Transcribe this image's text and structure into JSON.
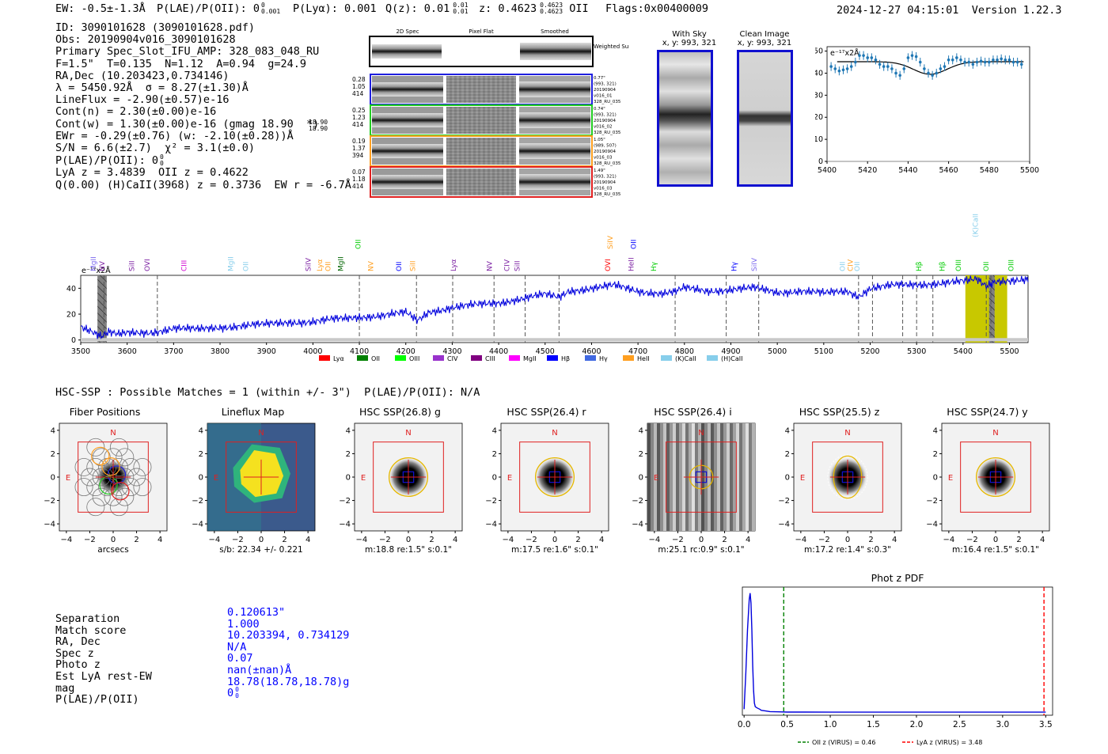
{
  "header": {
    "ew": "EW: -0.5±-1.3Å",
    "plae": "P(LAE)/P(OII): 0",
    "plae_sup": "0",
    "plae_sub": "0.001",
    "plya": "P(Lyα): 0.001",
    "qz": "Q(z): 0.01",
    "qz_sup": "0.01",
    "qz_sub": "0.01",
    "z": "z: 0.4623",
    "z_sup": "0.4623",
    "z_sub": "0.4623",
    "z_line": "OII",
    "flags": "Flags:0x00400009",
    "timestamp": "2024-12-27 04:15:01",
    "version": "Version 1.22.3"
  },
  "info": {
    "lines": [
      "ID: 3090101628 (3090101628.pdf)",
      "Obs: 20190904v016_3090101628",
      "Primary Spec_Slot_IFU_AMP: 328_083_048_RU",
      "F=1.5\"  T=0.135  N=1.12  A=0.94  g=24.9",
      "RA,Dec (10.203423,0.734146)",
      "λ = 5450.92Å  σ = 8.27(±1.30)Å",
      "LineFlux = -2.90(±0.57)e-16",
      "Cont(n) = 2.30(±0.00)e-16",
      "Cont(w) = 1.30(±0.00)e-16 (gmag 18.90  *)",
      "EWr = -0.29(±0.76) (w: -2.10(±0.28))Å",
      "S/N = 6.6(±2.7)  χ² = 3.1(±0.0)",
      "P(LAE)/P(OII): 0",
      "LyA z = 3.4839  OII z = 0.4622",
      "Q(0.00) (H)CaII(3968) z = 0.3736  EW r = -6.7Å"
    ],
    "gmag_sup": "18.90",
    "gmag_sub": "18.90",
    "plae_sup": "0",
    "plae_sub": "0"
  },
  "cutouts": {
    "headers": [
      "2D Spec",
      "Pixel Flat",
      "Smoothed"
    ],
    "weighted_label": "Weighted Sum",
    "rows": [
      {
        "left": [
          "0.28",
          "1.05",
          "414"
        ],
        "right": [
          "0.77\"",
          "(993, 321)",
          "20190904",
          "v016_01",
          "328_RU_035"
        ],
        "color": "#1f1fdf"
      },
      {
        "left": [
          "0.25",
          "1.23",
          "414"
        ],
        "right": [
          "0.74\"",
          "(993, 321)",
          "20190904",
          "v016_02",
          "328_RU_035"
        ],
        "color": "#22cc22"
      },
      {
        "left": [
          "0.19",
          "1.37",
          "394"
        ],
        "right": [
          "1.05\"",
          "(989, 507)",
          "20190904",
          "v016_03",
          "328_RU_035"
        ],
        "color": "#ff9f20"
      },
      {
        "left": [
          "0.07",
          "1.18",
          "414"
        ],
        "right": [
          "1.49\"",
          "(993, 321)",
          "20190904",
          "v016_03",
          "328_RU_035"
        ],
        "color": "#e02020"
      }
    ]
  },
  "sky": {
    "with_sky_title": "With Sky",
    "with_sky_coords": "x, y: 993, 321",
    "clean_title": "Clean Image",
    "clean_coords": "x, y: 993, 321"
  },
  "zoom_plot": {
    "unit_label": "e⁻¹⁷x2Å",
    "colors": {
      "points": "#1f77b4",
      "fit": "#000000"
    }
  },
  "spectrum": {
    "unit_label": "e⁻¹⁷x2Å",
    "line_labels": [
      {
        "w": 3527,
        "t": "MgII",
        "c": "#7b68ee"
      },
      {
        "w": 3546,
        "t": "NV",
        "c": "#7b1fa2"
      },
      {
        "w": 3610,
        "t": "SiII",
        "c": "#7b1fa2"
      },
      {
        "w": 3643,
        "t": "OVI",
        "c": "#7b1fa2"
      },
      {
        "w": 3722,
        "t": "CIII",
        "c": "#d000d0"
      },
      {
        "w": 3823,
        "t": "MgII",
        "c": "#87ceeb"
      },
      {
        "w": 3855,
        "t": "OII",
        "c": "#87ceeb"
      },
      {
        "w": 3990,
        "t": "SiIV",
        "c": "#7b1fa2"
      },
      {
        "w": 4015,
        "t": "Lyα",
        "c": "#ff9f20"
      },
      {
        "w": 4033,
        "t": "OII",
        "c": "#ff9f20"
      },
      {
        "w": 4060,
        "t": "MgII",
        "c": "#006400"
      },
      {
        "w": 4097,
        "t": "OII",
        "c": "#00cc00"
      },
      {
        "w": 4125,
        "t": "NV",
        "c": "#ff9f20"
      },
      {
        "w": 4185,
        "t": "OII",
        "c": "#0000ff"
      },
      {
        "w": 4215,
        "t": "SiII",
        "c": "#ff9f20"
      },
      {
        "w": 4303,
        "t": "Lyα",
        "c": "#7b1fa2"
      },
      {
        "w": 4380,
        "t": "NV",
        "c": "#7b1fa2"
      },
      {
        "w": 4418,
        "t": "CIV",
        "c": "#7b1fa2"
      },
      {
        "w": 4440,
        "t": "SiII",
        "c": "#7b1fa2"
      },
      {
        "w": 4635,
        "t": "OVI",
        "c": "#ff0000"
      },
      {
        "w": 4640,
        "t": "SiIV",
        "c": "#ff9f20"
      },
      {
        "w": 4685,
        "t": "HeII",
        "c": "#7b1fa2"
      },
      {
        "w": 4690,
        "t": "OII",
        "c": "#0000ff"
      },
      {
        "w": 4734,
        "t": "Hγ",
        "c": "#00cc00"
      },
      {
        "w": 4907,
        "t": "Hγ",
        "c": "#0000ff"
      },
      {
        "w": 4950,
        "t": "SiIV",
        "c": "#7b68ee"
      },
      {
        "w": 5140,
        "t": "OII",
        "c": "#87ceeb"
      },
      {
        "w": 5157,
        "t": "CIV",
        "c": "#ff9f20"
      },
      {
        "w": 5172,
        "t": "OII",
        "c": "#87ceeb"
      },
      {
        "w": 5305,
        "t": "Hβ",
        "c": "#00cc00"
      },
      {
        "w": 5355,
        "t": "Hβ",
        "c": "#00cc00"
      },
      {
        "w": 5390,
        "t": "OIII",
        "c": "#00cc00"
      },
      {
        "w": 5450,
        "t": "OII",
        "c": "#00cc00"
      },
      {
        "w": 5427,
        "t": "(K)CaII",
        "c": "#87ceeb"
      },
      {
        "w": 5503,
        "t": "OIII",
        "c": "#00cc00"
      }
    ],
    "legend": [
      {
        "t": "Lyα",
        "c": "#ff0000"
      },
      {
        "t": "OII",
        "c": "#008000"
      },
      {
        "t": "OIII",
        "c": "#00ff00"
      },
      {
        "t": "CIV",
        "c": "#9932cc"
      },
      {
        "t": "CIII",
        "c": "#800080"
      },
      {
        "t": "MgII",
        "c": "#ff00ff"
      },
      {
        "t": "Hβ",
        "c": "#0000ff"
      },
      {
        "t": "Hγ",
        "c": "#4169e1"
      },
      {
        "t": "HeII",
        "c": "#ff9f20"
      },
      {
        "t": "(K)CaII",
        "c": "#87ceeb"
      },
      {
        "t": "(H)CaII",
        "c": "#87ceeb"
      }
    ]
  },
  "hsc": {
    "header": "HSC-SSP : Possible Matches = 1 (within +/- 3\")  P(LAE)/P(OII): N/A",
    "panels": [
      {
        "title": "Fiber Positions",
        "xlabel": "arcsecs"
      },
      {
        "title": "Lineflux Map",
        "xlabel": "s/b: 22.34 +/- 0.221"
      },
      {
        "title": "HSC SSP(26.8) g",
        "xlabel": "m:18.8  re:1.5\"  s:0.1\""
      },
      {
        "title": "HSC SSP(26.4) r",
        "xlabel": "m:17.5  re:1.6\"  s:0.1\""
      },
      {
        "title": "HSC SSP(26.4) i",
        "xlabel": "m:25.1 rc:0.9\"  s:0.1\""
      },
      {
        "title": "HSC SSP(25.5) z",
        "xlabel": "m:17.2  re:1.4\"  s:0.3\""
      },
      {
        "title": "HSC SSP(24.7) y",
        "xlabel": "m:16.4  re:1.5\"  s:0.1\""
      }
    ],
    "n_label": "N",
    "e_label": "E"
  },
  "match": {
    "rows": [
      {
        "k": "Separation",
        "v": "0.120613\""
      },
      {
        "k": "Match score",
        "v": "1.000"
      },
      {
        "k": "RA, Dec",
        "v": "10.203394, 0.734129"
      },
      {
        "k": "Spec z",
        "v": "N/A"
      },
      {
        "k": "Photo z",
        "v": "0.07"
      },
      {
        "k": "Est LyA rest-EW",
        "v": "nan(±nan)Å"
      },
      {
        "k": "mag",
        "v": "18.78(18.78,18.78)g"
      },
      {
        "k": "P(LAE)/P(OII)",
        "v": "0"
      }
    ],
    "plae_sup": "0",
    "plae_sub": "0"
  },
  "chart_data": [
    {
      "type": "scatter",
      "title": "",
      "ylabel": "e⁻¹⁷x2Å",
      "xlim": [
        5400,
        5500
      ],
      "ylim": [
        0,
        52
      ],
      "xticks": [
        5400,
        5420,
        5440,
        5460,
        5480,
        5500
      ],
      "yticks": [
        0,
        10,
        20,
        30,
        40,
        50
      ],
      "x": [
        5402,
        5404,
        5406,
        5408,
        5410,
        5412,
        5414,
        5416,
        5418,
        5420,
        5422,
        5424,
        5426,
        5428,
        5430,
        5432,
        5434,
        5436,
        5438,
        5440,
        5442,
        5444,
        5446,
        5448,
        5450,
        5452,
        5454,
        5456,
        5458,
        5460,
        5462,
        5464,
        5466,
        5468,
        5470,
        5472,
        5474,
        5476,
        5478,
        5480,
        5482,
        5484,
        5486,
        5488,
        5490,
        5492,
        5494,
        5496
      ],
      "y": [
        43,
        42,
        41,
        41.5,
        42,
        43,
        45,
        48,
        48,
        47,
        47,
        46,
        44,
        43,
        43,
        42,
        40,
        39,
        42,
        47,
        48,
        47.5,
        45,
        42,
        40,
        39,
        40,
        42,
        43,
        46,
        46,
        47,
        46,
        45,
        45,
        44,
        45,
        45.5,
        45,
        45,
        46,
        46,
        46.5,
        46,
        46,
        45,
        45,
        44
      ],
      "fit_y_baseline": 45.2,
      "fit_center": 5450.9,
      "fit_sigma": 8.27,
      "fit_depth": 5.7
    },
    {
      "type": "line",
      "title": "",
      "ylabel": "e⁻¹⁷x2Å",
      "xlim": [
        3500,
        5540
      ],
      "ylim": [
        -2,
        50
      ],
      "xticks": [
        3500,
        3600,
        3700,
        3800,
        3900,
        4000,
        4100,
        4200,
        4300,
        4400,
        4500,
        4600,
        4700,
        4800,
        4900,
        5000,
        5100,
        5200,
        5300,
        5400,
        5500
      ],
      "yticks": [
        0,
        20,
        40
      ],
      "x_anchor": [
        3500,
        3520,
        3545,
        3560,
        3580,
        3600,
        3650,
        3700,
        3750,
        3800,
        3850,
        3900,
        3950,
        4000,
        4050,
        4080,
        4100,
        4150,
        4200,
        4225,
        4250,
        4300,
        4350,
        4400,
        4450,
        4500,
        4530,
        4550,
        4600,
        4650,
        4700,
        4750,
        4780,
        4800,
        4850,
        4900,
        4950,
        5000,
        5050,
        5100,
        5150,
        5175,
        5200,
        5250,
        5300,
        5350,
        5400,
        5430,
        5450,
        5470,
        5500,
        5540
      ],
      "y_anchor": [
        11,
        8,
        3,
        6,
        4,
        5,
        6,
        9,
        8,
        10,
        11,
        12,
        14,
        14,
        16,
        17,
        18,
        19,
        21,
        15,
        22,
        25,
        27,
        29,
        32,
        35,
        33,
        38,
        40,
        42,
        38,
        36,
        37,
        40,
        38,
        39,
        40,
        37,
        38,
        36,
        38,
        34,
        40,
        42,
        43,
        44,
        45,
        47,
        42,
        46,
        46,
        46
      ],
      "shaded_regions": [
        [
          3536,
          3556
        ],
        [
          5405,
          5495
        ]
      ],
      "hatched_regions": [
        [
          3536,
          3556
        ],
        [
          5456,
          5468
        ]
      ],
      "dashed_lines": [
        3550,
        3665,
        4100,
        4223,
        4301,
        4390,
        4457,
        4530,
        4780,
        4890,
        4960,
        5175,
        5205,
        5270,
        5300,
        5335,
        5450,
        5460
      ]
    },
    {
      "type": "line",
      "title": "Phot z PDF",
      "xlabel": "",
      "xlim": [
        -0.02,
        3.58
      ],
      "ylim": [
        0,
        1.05
      ],
      "xticks": [
        0.0,
        0.5,
        1.0,
        1.5,
        2.0,
        2.5,
        3.0,
        3.5
      ],
      "x": [
        0.0,
        0.02,
        0.04,
        0.06,
        0.07,
        0.08,
        0.09,
        0.1,
        0.11,
        0.12,
        0.13,
        0.15,
        0.18,
        0.2,
        0.25,
        0.3,
        0.4,
        0.5,
        0.7,
        1.0,
        1.5,
        2.0,
        2.5,
        3.0,
        3.5
      ],
      "y": [
        0.05,
        0.35,
        0.7,
        0.95,
        1.0,
        0.92,
        0.7,
        0.4,
        0.2,
        0.1,
        0.07,
        0.06,
        0.05,
        0.04,
        0.035,
        0.03,
        0.028,
        0.026,
        0.026,
        0.025,
        0.025,
        0.025,
        0.025,
        0.025,
        0.025
      ],
      "vlines": [
        {
          "x": 0.46,
          "color": "#008000",
          "label": "OII z (VIRUS) = 0.46"
        },
        {
          "x": 3.48,
          "color": "#ff0000",
          "label": "LyA z (VIRUS) = 3.48"
        }
      ]
    }
  ]
}
